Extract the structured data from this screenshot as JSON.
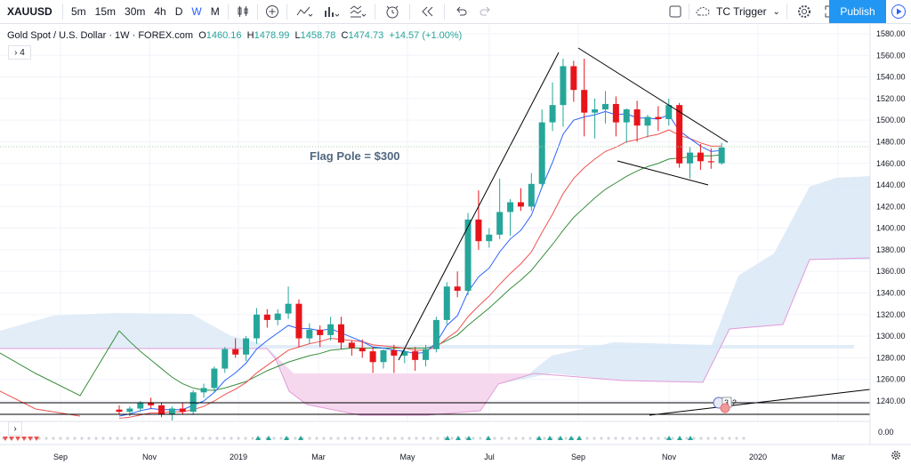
{
  "toolbar": {
    "symbol": "XAUUSD",
    "intervals": [
      "5m",
      "15m",
      "30m",
      "4h",
      "D",
      "W",
      "M"
    ],
    "active_interval": "W",
    "tc_trigger": "TC Trigger",
    "publish": "Publish"
  },
  "legend": {
    "name": "Gold Spot / U.S. Dollar · 1W · FOREX.com",
    "open": "1460.16",
    "high": "1478.99",
    "low": "1458.78",
    "close": "1474.73",
    "change": "+14.57 (+1.00%)",
    "collapsed_count": "4",
    "prefix_o": "O",
    "prefix_h": "H",
    "prefix_l": "L",
    "prefix_c": "C"
  },
  "annotation": "Flag Pole = $300",
  "price_tags": {
    "last": "1474.73",
    "level": "1235.00"
  },
  "event_badges": [
    "3",
    "2"
  ],
  "lower_pane": {
    "label": "0.00",
    "chevron": "›"
  },
  "colors": {
    "up": "#26a69a",
    "down": "#e8141b",
    "ema_fast": "#2962ff",
    "ema_mid": "#ef5350",
    "ema_slow": "#388e3c",
    "cloud_blue": "#dbe9f6",
    "cloud_pink": "#f8d6ec"
  },
  "chart_data": {
    "type": "candlestick",
    "timeframe": "1W",
    "ylim": [
      1220,
      1590
    ],
    "yticks": [
      1240,
      1260,
      1280,
      1300,
      1320,
      1340,
      1360,
      1380,
      1400,
      1420,
      1440,
      1460,
      1480,
      1500,
      1520,
      1540,
      1560,
      1580
    ],
    "xticks": [
      "Sep",
      "Nov",
      "2019",
      "Mar",
      "May",
      "Jul",
      "Sep",
      "Nov",
      "2020",
      "Mar"
    ],
    "candles": [
      {
        "o": 1232,
        "h": 1236,
        "l": 1228,
        "c": 1230
      },
      {
        "o": 1230,
        "h": 1235,
        "l": 1226,
        "c": 1233
      },
      {
        "o": 1233,
        "h": 1240,
        "l": 1230,
        "c": 1238
      },
      {
        "o": 1238,
        "h": 1243,
        "l": 1233,
        "c": 1236
      },
      {
        "o": 1236,
        "h": 1238,
        "l": 1225,
        "c": 1228
      },
      {
        "o": 1228,
        "h": 1235,
        "l": 1222,
        "c": 1233
      },
      {
        "o": 1233,
        "h": 1238,
        "l": 1228,
        "c": 1230
      },
      {
        "o": 1230,
        "h": 1250,
        "l": 1227,
        "c": 1248
      },
      {
        "o": 1248,
        "h": 1256,
        "l": 1243,
        "c": 1252
      },
      {
        "o": 1252,
        "h": 1272,
        "l": 1248,
        "c": 1270
      },
      {
        "o": 1270,
        "h": 1290,
        "l": 1266,
        "c": 1288
      },
      {
        "o": 1288,
        "h": 1298,
        "l": 1280,
        "c": 1283
      },
      {
        "o": 1283,
        "h": 1300,
        "l": 1277,
        "c": 1298
      },
      {
        "o": 1298,
        "h": 1326,
        "l": 1293,
        "c": 1320
      },
      {
        "o": 1320,
        "h": 1325,
        "l": 1308,
        "c": 1315
      },
      {
        "o": 1315,
        "h": 1325,
        "l": 1310,
        "c": 1321
      },
      {
        "o": 1321,
        "h": 1346,
        "l": 1316,
        "c": 1330
      },
      {
        "o": 1330,
        "h": 1334,
        "l": 1290,
        "c": 1298
      },
      {
        "o": 1298,
        "h": 1312,
        "l": 1293,
        "c": 1306
      },
      {
        "o": 1306,
        "h": 1310,
        "l": 1290,
        "c": 1301
      },
      {
        "o": 1301,
        "h": 1318,
        "l": 1296,
        "c": 1311
      },
      {
        "o": 1311,
        "h": 1318,
        "l": 1288,
        "c": 1294
      },
      {
        "o": 1294,
        "h": 1296,
        "l": 1282,
        "c": 1289
      },
      {
        "o": 1289,
        "h": 1297,
        "l": 1280,
        "c": 1286
      },
      {
        "o": 1286,
        "h": 1290,
        "l": 1266,
        "c": 1276
      },
      {
        "o": 1276,
        "h": 1288,
        "l": 1270,
        "c": 1287
      },
      {
        "o": 1287,
        "h": 1292,
        "l": 1266,
        "c": 1282
      },
      {
        "o": 1282,
        "h": 1289,
        "l": 1275,
        "c": 1286
      },
      {
        "o": 1286,
        "h": 1290,
        "l": 1268,
        "c": 1278
      },
      {
        "o": 1278,
        "h": 1292,
        "l": 1272,
        "c": 1288
      },
      {
        "o": 1288,
        "h": 1318,
        "l": 1285,
        "c": 1315
      },
      {
        "o": 1315,
        "h": 1350,
        "l": 1311,
        "c": 1346
      },
      {
        "o": 1346,
        "h": 1360,
        "l": 1336,
        "c": 1342
      },
      {
        "o": 1342,
        "h": 1414,
        "l": 1338,
        "c": 1408
      },
      {
        "o": 1408,
        "h": 1435,
        "l": 1380,
        "c": 1388
      },
      {
        "o": 1388,
        "h": 1400,
        "l": 1382,
        "c": 1394
      },
      {
        "o": 1394,
        "h": 1446,
        "l": 1390,
        "c": 1415
      },
      {
        "o": 1415,
        "h": 1427,
        "l": 1393,
        "c": 1424
      },
      {
        "o": 1424,
        "h": 1437,
        "l": 1416,
        "c": 1420
      },
      {
        "o": 1420,
        "h": 1451,
        "l": 1416,
        "c": 1441
      },
      {
        "o": 1441,
        "h": 1510,
        "l": 1437,
        "c": 1498
      },
      {
        "o": 1498,
        "h": 1535,
        "l": 1490,
        "c": 1514
      },
      {
        "o": 1514,
        "h": 1557,
        "l": 1494,
        "c": 1550
      },
      {
        "o": 1550,
        "h": 1555,
        "l": 1517,
        "c": 1528
      },
      {
        "o": 1528,
        "h": 1557,
        "l": 1485,
        "c": 1507
      },
      {
        "o": 1507,
        "h": 1520,
        "l": 1483,
        "c": 1510
      },
      {
        "o": 1510,
        "h": 1527,
        "l": 1497,
        "c": 1515
      },
      {
        "o": 1515,
        "h": 1522,
        "l": 1485,
        "c": 1498
      },
      {
        "o": 1498,
        "h": 1511,
        "l": 1479,
        "c": 1510
      },
      {
        "o": 1510,
        "h": 1518,
        "l": 1480,
        "c": 1495
      },
      {
        "o": 1495,
        "h": 1505,
        "l": 1484,
        "c": 1503
      },
      {
        "o": 1503,
        "h": 1513,
        "l": 1490,
        "c": 1501
      },
      {
        "o": 1501,
        "h": 1520,
        "l": 1495,
        "c": 1514
      },
      {
        "o": 1514,
        "h": 1516,
        "l": 1456,
        "c": 1460
      },
      {
        "o": 1460,
        "h": 1475,
        "l": 1446,
        "c": 1470
      },
      {
        "o": 1470,
        "h": 1478,
        "l": 1454,
        "c": 1462
      },
      {
        "o": 1462,
        "h": 1474,
        "l": 1455,
        "c": 1461
      },
      {
        "o": 1460.16,
        "h": 1478.99,
        "l": 1458.78,
        "c": 1474.73
      }
    ],
    "ema_fast": [
      1226,
      1228,
      1231,
      1233,
      1232,
      1232,
      1232,
      1236,
      1240,
      1248,
      1259,
      1266,
      1275,
      1288,
      1296,
      1303,
      1310,
      1307,
      1307,
      1305,
      1307,
      1303,
      1299,
      1295,
      1290,
      1289,
      1287,
      1286,
      1284,
      1285,
      1294,
      1310,
      1319,
      1341,
      1355,
      1363,
      1378,
      1390,
      1398,
      1412,
      1438,
      1461,
      1487,
      1500,
      1503,
      1505,
      1508,
      1505,
      1506,
      1502,
      1502,
      1501,
      1505,
      1490,
      1483,
      1476,
      1471,
      1472
    ],
    "ema_mid": [
      1224,
      1225,
      1227,
      1229,
      1229,
      1230,
      1230,
      1232,
      1235,
      1240,
      1246,
      1251,
      1257,
      1266,
      1273,
      1280,
      1287,
      1290,
      1293,
      1295,
      1298,
      1297,
      1296,
      1295,
      1292,
      1291,
      1290,
      1289,
      1287,
      1287,
      1290,
      1298,
      1305,
      1318,
      1328,
      1337,
      1348,
      1358,
      1367,
      1378,
      1396,
      1413,
      1432,
      1446,
      1456,
      1464,
      1471,
      1475,
      1480,
      1482,
      1485,
      1487,
      1491,
      1486,
      1483,
      1479,
      1476,
      1476
    ],
    "ema_slow": [
      1305,
      1295,
      1286,
      1278,
      1270,
      1262,
      1256,
      1252,
      1250,
      1250,
      1252,
      1255,
      1258,
      1263,
      1268,
      1272,
      1276,
      1279,
      1282,
      1284,
      1287,
      1288,
      1289,
      1289,
      1289,
      1289,
      1289,
      1289,
      1289,
      1289,
      1291,
      1296,
      1301,
      1310,
      1318,
      1326,
      1335,
      1344,
      1352,
      1361,
      1373,
      1385,
      1398,
      1410,
      1419,
      1428,
      1436,
      1442,
      1448,
      1453,
      1457,
      1460,
      1464,
      1465,
      1466,
      1467,
      1467,
      1468
    ],
    "cloud_segments_note": "Ichimoku cloud",
    "annotation_lines": [
      "flag pole",
      "flag upper",
      "flag lower"
    ],
    "horizontal_level": 1235.0,
    "last_price": 1474.73
  }
}
